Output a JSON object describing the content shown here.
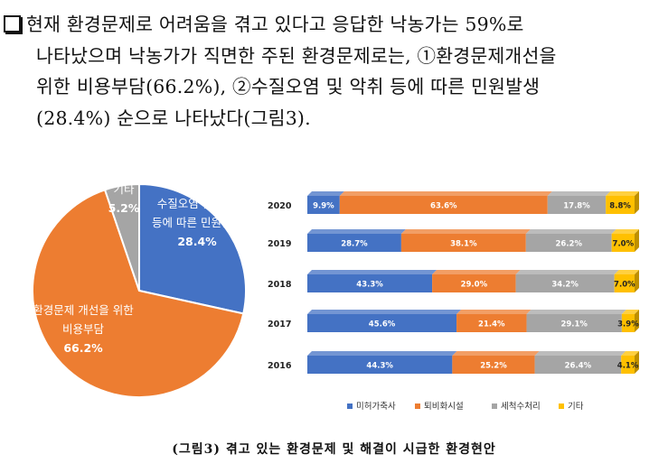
{
  "paragraph": {
    "line1": "현재 환경문제로 어려움을 겪고 있다고 응답한 낙농가는 59%로",
    "line2": "나타났으며 낙농가가 직면한 주된 환경문제로는, ①환경문제개선을",
    "line3": "위한 비용부담(66.2%), ②수질오염 및 악취 등에 따른 민원발생",
    "line4": "(28.4%) 순으로 나타났다(그림3)."
  },
  "caption": "(그림3) 겪고 있는 환경문제 및 해결이 시급한 환경현안",
  "chart_data": [
    {
      "type": "pie",
      "slices": [
        {
          "label_lines": [
            "수질오염 및 악취",
            "등에 따른 민원발생"
          ],
          "value": 28.4,
          "value_label": "28.4%",
          "color": "#4472C4"
        },
        {
          "label_lines": [
            "환경문제 개선을 위한",
            "비용부담"
          ],
          "value": 66.2,
          "value_label": "66.2%",
          "color": "#ED7D31"
        },
        {
          "label_lines": [
            "기타"
          ],
          "value": 5.2,
          "value_label": "5.2%",
          "color": "#A5A5A5"
        }
      ]
    },
    {
      "type": "bar",
      "orientation": "horizontal",
      "stacked": "100%",
      "categories": [
        "2020",
        "2019",
        "2018",
        "2017",
        "2016"
      ],
      "series": [
        {
          "name": "미허가축사",
          "color": "#4472C4",
          "values": [
            9.9,
            28.7,
            43.3,
            45.6,
            44.3
          ],
          "labels": [
            "9.9%",
            "28.7%",
            "43.3%",
            "45.6%",
            "44.3%"
          ]
        },
        {
          "name": "퇴비화시설",
          "color": "#ED7D31",
          "values": [
            63.6,
            38.1,
            29.0,
            21.4,
            25.2
          ],
          "labels": [
            "63.6%",
            "38.1%",
            "29.0%",
            "21.4%",
            "25.2%"
          ]
        },
        {
          "name": "세척수처리",
          "color": "#A5A5A5",
          "values": [
            17.8,
            26.2,
            34.2,
            29.1,
            26.4
          ],
          "labels": [
            "17.8%",
            "26.2%",
            "34.2%",
            "29.1%",
            "26.4%"
          ]
        },
        {
          "name": "기타",
          "color": "#FFC000",
          "values": [
            8.8,
            7.0,
            7.0,
            3.9,
            4.1
          ],
          "labels": [
            "8.8%",
            "7.0%",
            "7.0%",
            "3.9%",
            "4.1%"
          ]
        }
      ],
      "legend_position": "bottom"
    }
  ]
}
